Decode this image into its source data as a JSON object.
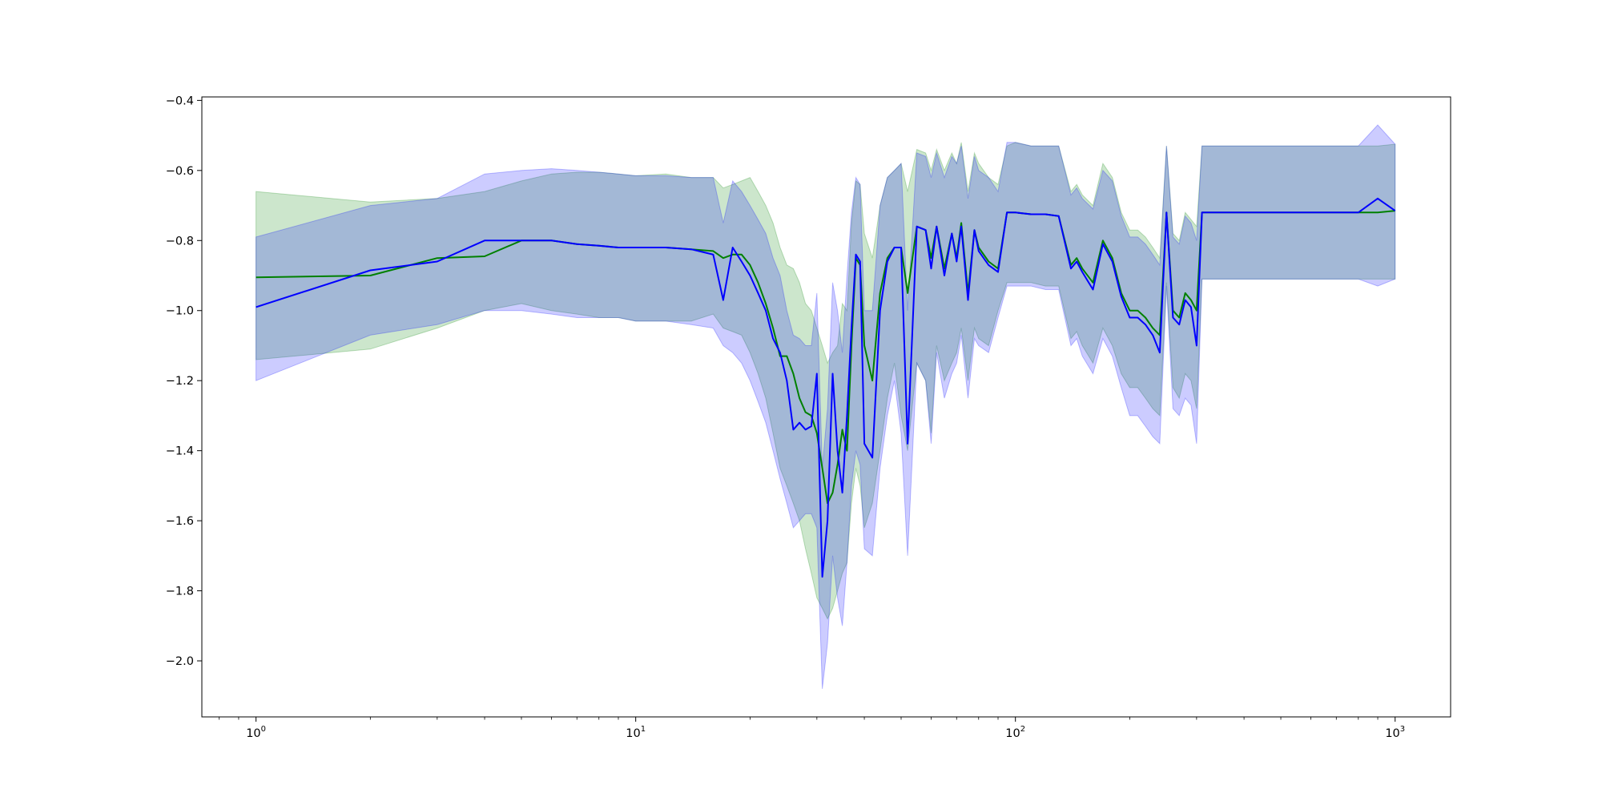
{
  "chart_data": {
    "type": "line",
    "title": "",
    "xlabel": "",
    "ylabel": "",
    "xscale": "log",
    "xlim": [
      0.72,
      1400
    ],
    "ylim": [
      -2.16,
      -0.39
    ],
    "grid": false,
    "x_ticks": [
      {
        "value": 1,
        "base": "10",
        "exp": "0"
      },
      {
        "value": 10,
        "base": "10",
        "exp": "1"
      },
      {
        "value": 100,
        "base": "10",
        "exp": "2"
      },
      {
        "value": 1000,
        "base": "10",
        "exp": "3"
      }
    ],
    "y_ticks": [
      {
        "value": -0.4,
        "label": "−0.4"
      },
      {
        "value": -0.6,
        "label": "−0.6"
      },
      {
        "value": -0.8,
        "label": "−0.8"
      },
      {
        "value": -1.0,
        "label": "−1.0"
      },
      {
        "value": -1.2,
        "label": "−1.2"
      },
      {
        "value": -1.4,
        "label": "−1.4"
      },
      {
        "value": -1.6,
        "label": "−1.6"
      },
      {
        "value": -1.8,
        "label": "−1.8"
      },
      {
        "value": -2.0,
        "label": "−2.0"
      }
    ],
    "series": [
      {
        "color": "#008000",
        "band_color": "#008000",
        "band_opacity": 0.2,
        "x": [
          1,
          2,
          3,
          4,
          5,
          6,
          7,
          8,
          9,
          10,
          12,
          14,
          16,
          17,
          18,
          19,
          20,
          21,
          22,
          23,
          24,
          25,
          26,
          27,
          28,
          29,
          30,
          31,
          32,
          33,
          34,
          35,
          36,
          37,
          38,
          39,
          40,
          42,
          44,
          46,
          48,
          50,
          52,
          55,
          58,
          60,
          62,
          65,
          68,
          70,
          72,
          75,
          78,
          80,
          85,
          90,
          95,
          100,
          110,
          120,
          130,
          140,
          145,
          150,
          160,
          170,
          180,
          190,
          200,
          210,
          220,
          230,
          240,
          250,
          260,
          270,
          280,
          290,
          300,
          310,
          400,
          500,
          600,
          700,
          800,
          900,
          1000
        ],
        "y": [
          -0.905,
          -0.9,
          -0.85,
          -0.845,
          -0.8,
          -0.8,
          -0.81,
          -0.815,
          -0.82,
          -0.82,
          -0.82,
          -0.825,
          -0.83,
          -0.85,
          -0.84,
          -0.84,
          -0.87,
          -0.92,
          -0.98,
          -1.05,
          -1.13,
          -1.13,
          -1.18,
          -1.25,
          -1.29,
          -1.3,
          -1.35,
          -1.45,
          -1.55,
          -1.52,
          -1.44,
          -1.34,
          -1.4,
          -1.1,
          -0.85,
          -0.87,
          -1.1,
          -1.2,
          -0.95,
          -0.85,
          -0.82,
          -0.82,
          -0.95,
          -0.76,
          -0.77,
          -0.85,
          -0.76,
          -0.88,
          -0.78,
          -0.85,
          -0.75,
          -0.95,
          -0.77,
          -0.82,
          -0.86,
          -0.88,
          -0.72,
          -0.72,
          -0.725,
          -0.725,
          -0.73,
          -0.87,
          -0.85,
          -0.88,
          -0.92,
          -0.8,
          -0.85,
          -0.95,
          -1.0,
          -1.0,
          -1.02,
          -1.05,
          -1.07,
          -0.72,
          -1.0,
          -1.02,
          -0.95,
          -0.97,
          -1.0,
          -0.72,
          -0.72,
          -0.72,
          -0.72,
          -0.72,
          -0.72,
          -0.72,
          -0.715
        ],
        "lower": [
          -1.14,
          -1.11,
          -1.05,
          -1.0,
          -0.98,
          -1.0,
          -1.01,
          -1.02,
          -1.02,
          -1.03,
          -1.03,
          -1.03,
          -1.01,
          -1.05,
          -1.06,
          -1.07,
          -1.12,
          -1.18,
          -1.25,
          -1.35,
          -1.45,
          -1.5,
          -1.55,
          -1.6,
          -1.68,
          -1.75,
          -1.82,
          -1.85,
          -1.88,
          -1.85,
          -1.8,
          -1.75,
          -1.72,
          -1.55,
          -1.45,
          -1.5,
          -1.62,
          -1.55,
          -1.4,
          -1.25,
          -1.15,
          -1.3,
          -1.4,
          -1.15,
          -1.2,
          -1.35,
          -1.1,
          -1.2,
          -1.15,
          -1.12,
          -1.05,
          -1.2,
          -1.05,
          -1.08,
          -1.1,
          -1.0,
          -0.92,
          -0.92,
          -0.92,
          -0.93,
          -0.93,
          -1.08,
          -1.06,
          -1.1,
          -1.15,
          -1.05,
          -1.1,
          -1.18,
          -1.22,
          -1.22,
          -1.25,
          -1.28,
          -1.3,
          -0.92,
          -1.22,
          -1.25,
          -1.18,
          -1.2,
          -1.28,
          -0.91,
          -0.91,
          -0.91,
          -0.91,
          -0.91,
          -0.91,
          -0.91,
          -0.91
        ],
        "upper": [
          -0.66,
          -0.69,
          -0.68,
          -0.66,
          -0.63,
          -0.61,
          -0.605,
          -0.605,
          -0.61,
          -0.615,
          -0.61,
          -0.62,
          -0.62,
          -0.65,
          -0.64,
          -0.63,
          -0.62,
          -0.66,
          -0.7,
          -0.75,
          -0.82,
          -0.87,
          -0.88,
          -0.92,
          -0.98,
          -1.0,
          -1.05,
          -1.1,
          -1.15,
          -1.12,
          -1.1,
          -0.98,
          -1.0,
          -0.75,
          -0.63,
          -0.64,
          -0.78,
          -0.85,
          -0.7,
          -0.62,
          -0.6,
          -0.58,
          -0.66,
          -0.54,
          -0.55,
          -0.6,
          -0.54,
          -0.6,
          -0.55,
          -0.58,
          -0.52,
          -0.66,
          -0.55,
          -0.58,
          -0.62,
          -0.64,
          -0.53,
          -0.52,
          -0.53,
          -0.53,
          -0.53,
          -0.66,
          -0.64,
          -0.67,
          -0.7,
          -0.58,
          -0.62,
          -0.72,
          -0.77,
          -0.77,
          -0.79,
          -0.82,
          -0.85,
          -0.53,
          -0.78,
          -0.8,
          -0.72,
          -0.74,
          -0.76,
          -0.53,
          -0.53,
          -0.53,
          -0.53,
          -0.53,
          -0.53,
          -0.53,
          -0.525
        ]
      },
      {
        "color": "#0000ff",
        "band_color": "#0000ff",
        "band_opacity": 0.2,
        "x": [
          1,
          2,
          3,
          4,
          5,
          6,
          7,
          8,
          9,
          10,
          12,
          14,
          16,
          17,
          18,
          19,
          20,
          21,
          22,
          23,
          24,
          25,
          26,
          27,
          28,
          29,
          30,
          31,
          32,
          33,
          34,
          35,
          36,
          37,
          38,
          39,
          40,
          42,
          44,
          46,
          48,
          50,
          52,
          55,
          58,
          60,
          62,
          65,
          68,
          70,
          72,
          75,
          78,
          80,
          85,
          90,
          95,
          100,
          110,
          120,
          130,
          140,
          145,
          150,
          160,
          170,
          180,
          190,
          200,
          210,
          220,
          230,
          240,
          250,
          260,
          270,
          280,
          290,
          300,
          310,
          400,
          500,
          600,
          700,
          800,
          900,
          1000
        ],
        "y": [
          -0.99,
          -0.885,
          -0.86,
          -0.8,
          -0.8,
          -0.8,
          -0.81,
          -0.815,
          -0.82,
          -0.82,
          -0.82,
          -0.825,
          -0.84,
          -0.97,
          -0.82,
          -0.86,
          -0.9,
          -0.95,
          -1.0,
          -1.08,
          -1.12,
          -1.2,
          -1.34,
          -1.32,
          -1.34,
          -1.33,
          -1.18,
          -1.76,
          -1.6,
          -1.18,
          -1.4,
          -1.52,
          -1.3,
          -1.05,
          -0.84,
          -0.86,
          -1.38,
          -1.42,
          -1.0,
          -0.86,
          -0.82,
          -0.82,
          -1.38,
          -0.76,
          -0.77,
          -0.88,
          -0.76,
          -0.9,
          -0.78,
          -0.86,
          -0.76,
          -0.97,
          -0.77,
          -0.83,
          -0.87,
          -0.89,
          -0.72,
          -0.72,
          -0.725,
          -0.725,
          -0.73,
          -0.88,
          -0.86,
          -0.89,
          -0.94,
          -0.81,
          -0.86,
          -0.96,
          -1.02,
          -1.02,
          -1.04,
          -1.07,
          -1.12,
          -0.72,
          -1.02,
          -1.04,
          -0.97,
          -0.99,
          -1.1,
          -0.72,
          -0.72,
          -0.72,
          -0.72,
          -0.72,
          -0.72,
          -0.68,
          -0.715
        ],
        "lower": [
          -1.2,
          -1.07,
          -1.04,
          -1.0,
          -1.0,
          -1.01,
          -1.02,
          -1.02,
          -1.02,
          -1.03,
          -1.03,
          -1.04,
          -1.05,
          -1.1,
          -1.12,
          -1.15,
          -1.2,
          -1.26,
          -1.32,
          -1.4,
          -1.48,
          -1.55,
          -1.62,
          -1.6,
          -1.58,
          -1.58,
          -1.62,
          -2.08,
          -1.95,
          -1.7,
          -1.82,
          -1.9,
          -1.72,
          -1.5,
          -1.4,
          -1.44,
          -1.68,
          -1.7,
          -1.45,
          -1.3,
          -1.2,
          -1.35,
          -1.7,
          -1.15,
          -1.2,
          -1.38,
          -1.12,
          -1.25,
          -1.18,
          -1.15,
          -1.07,
          -1.25,
          -1.08,
          -1.1,
          -1.12,
          -1.02,
          -0.93,
          -0.93,
          -0.93,
          -0.94,
          -0.94,
          -1.1,
          -1.08,
          -1.13,
          -1.18,
          -1.08,
          -1.13,
          -1.22,
          -1.3,
          -1.3,
          -1.33,
          -1.36,
          -1.38,
          -0.93,
          -1.28,
          -1.3,
          -1.25,
          -1.27,
          -1.38,
          -0.91,
          -0.91,
          -0.91,
          -0.91,
          -0.91,
          -0.91,
          -0.93,
          -0.91
        ],
        "upper": [
          -0.79,
          -0.7,
          -0.68,
          -0.61,
          -0.6,
          -0.595,
          -0.6,
          -0.605,
          -0.61,
          -0.615,
          -0.615,
          -0.62,
          -0.62,
          -0.75,
          -0.63,
          -0.66,
          -0.7,
          -0.74,
          -0.78,
          -0.85,
          -0.9,
          -1.0,
          -1.07,
          -1.08,
          -1.1,
          -1.1,
          -0.95,
          -1.45,
          -1.28,
          -0.92,
          -1.0,
          -1.12,
          -0.9,
          -0.72,
          -0.62,
          -0.64,
          -1.0,
          -1.0,
          -0.7,
          -0.62,
          -0.6,
          -0.58,
          -1.0,
          -0.55,
          -0.56,
          -0.62,
          -0.55,
          -0.62,
          -0.56,
          -0.58,
          -0.53,
          -0.68,
          -0.56,
          -0.6,
          -0.62,
          -0.66,
          -0.52,
          -0.52,
          -0.53,
          -0.53,
          -0.53,
          -0.67,
          -0.65,
          -0.68,
          -0.71,
          -0.6,
          -0.63,
          -0.73,
          -0.79,
          -0.79,
          -0.81,
          -0.84,
          -0.87,
          -0.53,
          -0.79,
          -0.81,
          -0.73,
          -0.75,
          -0.8,
          -0.53,
          -0.53,
          -0.53,
          -0.53,
          -0.53,
          -0.53,
          -0.47,
          -0.525
        ]
      }
    ]
  }
}
